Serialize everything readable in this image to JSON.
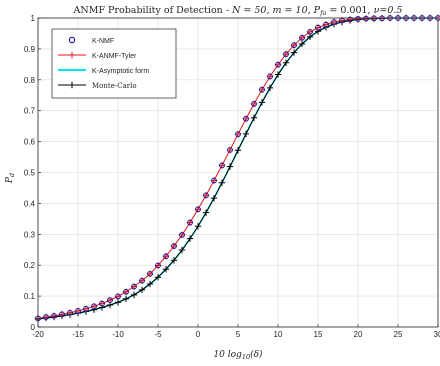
{
  "chart_data": {
    "type": "line",
    "title": "ANMF Probability of Detection - N = 50, m = 10, P_fa = 0.001, ν=0.5",
    "title_parts": {
      "prefix": "ANMF Probability of Detection - ",
      "N": "N = 50, ",
      "m": "m = 10, ",
      "pfa_main": "P",
      "pfa_sub": "fa",
      "pfa_val": " = 0.001, ",
      "nu": "ν=0.5"
    },
    "xlabel_parts": {
      "pre": "10 log",
      "sub": "10",
      "post": "(δ)"
    },
    "ylabel_parts": {
      "main": "P",
      "sub": "d"
    },
    "xlim": [
      -20,
      30
    ],
    "ylim": [
      0,
      1
    ],
    "xticks": [
      -20,
      -15,
      -10,
      -5,
      0,
      5,
      10,
      15,
      20,
      25,
      30
    ],
    "yticks": [
      0,
      0.1,
      0.2,
      0.3,
      0.4,
      0.5,
      0.6,
      0.7,
      0.8,
      0.9,
      1
    ],
    "ytick_labels": [
      "0",
      "0.1",
      "0.2",
      "0.3",
      "0.4",
      "0.5",
      "0.6",
      "0.7",
      "0.8",
      "0.9",
      "1"
    ],
    "grid": true,
    "legend_position": "top-left",
    "x": [
      -20,
      -19,
      -18,
      -17,
      -16,
      -15,
      -14,
      -13,
      -12,
      -11,
      -10,
      -9,
      -8,
      -7,
      -6,
      -5,
      -4,
      -3,
      -2,
      -1,
      0,
      1,
      2,
      3,
      4,
      5,
      6,
      7,
      8,
      9,
      10,
      11,
      12,
      13,
      14,
      15,
      16,
      17,
      18,
      19,
      20,
      21,
      22,
      23,
      24,
      25,
      26,
      27,
      28,
      29,
      30
    ],
    "series": [
      {
        "name": "K-NMF",
        "color": "#1a1aa6",
        "style": "markers-circle",
        "values": [
          0.028,
          0.032,
          0.036,
          0.041,
          0.046,
          0.052,
          0.059,
          0.067,
          0.076,
          0.087,
          0.099,
          0.114,
          0.131,
          0.15,
          0.172,
          0.199,
          0.229,
          0.262,
          0.298,
          0.338,
          0.381,
          0.426,
          0.474,
          0.523,
          0.573,
          0.624,
          0.674,
          0.722,
          0.768,
          0.811,
          0.849,
          0.883,
          0.912,
          0.936,
          0.955,
          0.969,
          0.979,
          0.987,
          0.992,
          0.995,
          0.997,
          0.998,
          0.999,
          0.999,
          1.0,
          1.0,
          1.0,
          1.0,
          1.0,
          1.0,
          1.0
        ]
      },
      {
        "name": "K-ANMF-Tyler",
        "color": "#e31a1c",
        "style": "line-plus",
        "values": [
          0.028,
          0.032,
          0.036,
          0.041,
          0.046,
          0.052,
          0.059,
          0.067,
          0.076,
          0.087,
          0.099,
          0.114,
          0.131,
          0.15,
          0.172,
          0.199,
          0.229,
          0.262,
          0.298,
          0.338,
          0.381,
          0.426,
          0.474,
          0.523,
          0.573,
          0.624,
          0.674,
          0.722,
          0.768,
          0.811,
          0.849,
          0.883,
          0.912,
          0.936,
          0.955,
          0.969,
          0.979,
          0.987,
          0.992,
          0.995,
          0.997,
          0.998,
          0.999,
          0.999,
          1.0,
          1.0,
          1.0,
          1.0,
          1.0,
          1.0,
          1.0
        ]
      },
      {
        "name": "K-Asymptotic form",
        "color": "#00e5e5",
        "style": "line",
        "values": [
          0.026,
          0.029,
          0.032,
          0.036,
          0.04,
          0.045,
          0.05,
          0.056,
          0.063,
          0.071,
          0.08,
          0.091,
          0.104,
          0.12,
          0.139,
          0.161,
          0.187,
          0.216,
          0.249,
          0.286,
          0.326,
          0.37,
          0.417,
          0.467,
          0.519,
          0.572,
          0.625,
          0.677,
          0.727,
          0.774,
          0.817,
          0.855,
          0.888,
          0.916,
          0.939,
          0.957,
          0.97,
          0.98,
          0.987,
          0.992,
          0.995,
          0.997,
          0.998,
          0.999,
          1.0,
          1.0,
          1.0,
          1.0,
          1.0,
          1.0,
          1.0
        ]
      },
      {
        "name": "Monte-Carlo",
        "color": "#000000",
        "style": "line-plus",
        "values": [
          0.026,
          0.029,
          0.032,
          0.036,
          0.04,
          0.045,
          0.05,
          0.056,
          0.063,
          0.071,
          0.08,
          0.091,
          0.104,
          0.12,
          0.139,
          0.161,
          0.187,
          0.216,
          0.249,
          0.286,
          0.326,
          0.37,
          0.417,
          0.467,
          0.519,
          0.572,
          0.625,
          0.677,
          0.727,
          0.774,
          0.817,
          0.855,
          0.888,
          0.916,
          0.939,
          0.957,
          0.97,
          0.98,
          0.987,
          0.992,
          0.995,
          0.997,
          0.998,
          0.999,
          1.0,
          1.0,
          1.0,
          1.0,
          1.0,
          1.0,
          1.0
        ]
      }
    ]
  }
}
